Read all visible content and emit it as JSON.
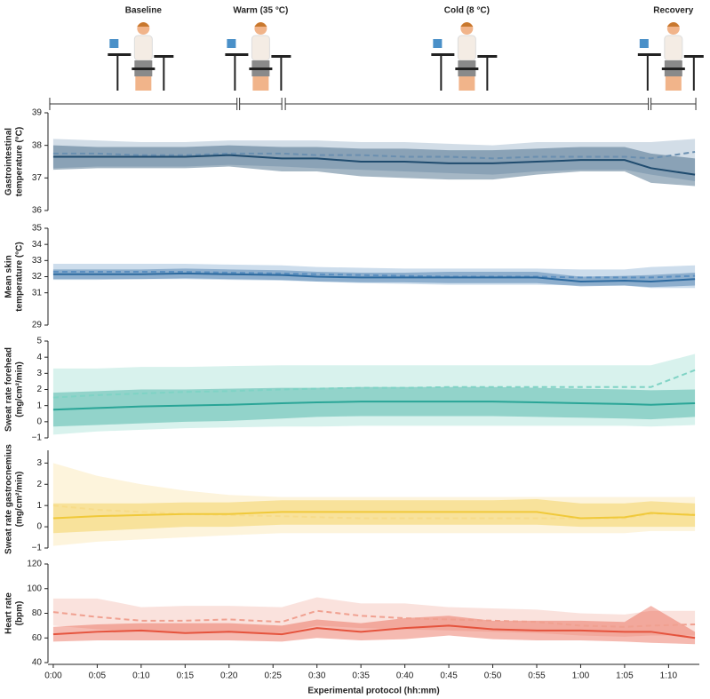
{
  "protocol": {
    "phases": [
      {
        "label": "Baseline",
        "start": -0.4,
        "end": 20.9
      },
      {
        "label": "Warm (35 °C)",
        "start": 21.2,
        "end": 26.0
      },
      {
        "label": "Cold (8 °C)",
        "start": 26.4,
        "end": 67.7
      },
      {
        "label": "Recovery",
        "start": 68.0,
        "end": 73.1
      }
    ]
  },
  "chart_data": [
    {
      "type": "line",
      "ylabel": [
        "Gastrointestinal",
        "temperature (°C)"
      ],
      "x": [
        0,
        5,
        10,
        15,
        20,
        26,
        30,
        35,
        40,
        45,
        50,
        55,
        60,
        65,
        68,
        73
      ],
      "xlim": [
        -0.6,
        73.5
      ],
      "ylim": [
        36,
        39
      ],
      "yticks": [
        36,
        37,
        38,
        39
      ],
      "series": [
        {
          "color": "#6a8fb0",
          "style": "dashed",
          "values": [
            37.75,
            37.75,
            37.7,
            37.7,
            37.75,
            37.75,
            37.7,
            37.7,
            37.65,
            37.65,
            37.6,
            37.65,
            37.65,
            37.65,
            37.6,
            37.8
          ],
          "lower": [
            37.3,
            37.35,
            37.35,
            37.35,
            37.4,
            37.35,
            37.3,
            37.25,
            37.2,
            37.15,
            37.1,
            37.2,
            37.25,
            37.25,
            37.1,
            36.9
          ],
          "upper": [
            38.2,
            38.15,
            38.1,
            38.1,
            38.15,
            38.15,
            38.15,
            38.1,
            38.1,
            38.05,
            38.0,
            38.1,
            38.1,
            38.1,
            38.1,
            38.2
          ]
        },
        {
          "color": "#1f4b6e",
          "style": "solid",
          "values": [
            37.65,
            37.65,
            37.65,
            37.65,
            37.7,
            37.6,
            37.6,
            37.5,
            37.5,
            37.45,
            37.45,
            37.5,
            37.55,
            37.55,
            37.3,
            37.1
          ],
          "lower": [
            37.25,
            37.3,
            37.3,
            37.3,
            37.35,
            37.2,
            37.2,
            37.05,
            37.0,
            36.95,
            36.95,
            37.1,
            37.2,
            37.2,
            36.85,
            36.75
          ],
          "upper": [
            38.0,
            37.95,
            37.95,
            37.95,
            38.0,
            37.95,
            37.95,
            37.9,
            37.9,
            37.85,
            37.85,
            37.9,
            37.95,
            37.95,
            37.75,
            37.6
          ]
        }
      ]
    },
    {
      "type": "line",
      "ylabel": [
        "Mean skin",
        "temperature (°C)"
      ],
      "x": [
        0,
        5,
        10,
        15,
        20,
        26,
        30,
        35,
        40,
        45,
        50,
        55,
        60,
        65,
        68,
        73
      ],
      "xlim": [
        -0.6,
        73.5
      ],
      "ylim": [
        29,
        35
      ],
      "yticks": [
        29,
        31,
        32,
        33,
        34,
        35
      ],
      "series": [
        {
          "color": "#5b8fc0",
          "style": "dashed",
          "values": [
            32.3,
            32.3,
            32.3,
            32.3,
            32.25,
            32.2,
            32.15,
            32.1,
            32.05,
            32.0,
            32.0,
            32.0,
            31.95,
            31.95,
            31.95,
            32.05
          ],
          "lower": [
            31.8,
            31.8,
            31.85,
            31.85,
            31.8,
            31.75,
            31.7,
            31.6,
            31.55,
            31.5,
            31.5,
            31.5,
            31.45,
            31.45,
            31.3,
            31.3
          ],
          "upper": [
            32.8,
            32.8,
            32.8,
            32.8,
            32.75,
            32.7,
            32.6,
            32.55,
            32.5,
            32.5,
            32.5,
            32.5,
            32.45,
            32.45,
            32.6,
            32.7
          ]
        },
        {
          "color": "#2d6a9f",
          "style": "solid",
          "values": [
            32.15,
            32.15,
            32.15,
            32.2,
            32.15,
            32.1,
            32.0,
            31.95,
            31.95,
            31.95,
            31.95,
            31.95,
            31.7,
            31.75,
            31.7,
            31.85
          ],
          "lower": [
            31.85,
            31.85,
            31.85,
            31.9,
            31.85,
            31.8,
            31.7,
            31.65,
            31.65,
            31.6,
            31.6,
            31.6,
            31.4,
            31.45,
            31.35,
            31.45
          ],
          "upper": [
            32.45,
            32.45,
            32.45,
            32.5,
            32.45,
            32.4,
            32.3,
            32.25,
            32.25,
            32.3,
            32.3,
            32.3,
            32.0,
            32.05,
            32.1,
            32.25
          ]
        }
      ]
    },
    {
      "type": "line",
      "ylabel": [
        "Sweat rate forehead",
        "(mg/cm²/min)"
      ],
      "x": [
        0,
        5,
        10,
        15,
        20,
        26,
        30,
        35,
        40,
        45,
        50,
        55,
        60,
        65,
        68,
        73
      ],
      "xlim": [
        -0.6,
        73.5
      ],
      "ylim": [
        -1,
        5
      ],
      "yticks": [
        {
          "value": -1,
          "label": "−1"
        },
        0,
        1,
        2,
        3,
        4,
        5
      ],
      "series": [
        {
          "color": "#7fd3c5",
          "style": "dashed",
          "values": [
            1.5,
            1.65,
            1.75,
            1.85,
            1.9,
            2.0,
            2.05,
            2.1,
            2.1,
            2.15,
            2.15,
            2.15,
            2.15,
            2.15,
            2.15,
            3.2
          ],
          "lower": [
            -0.8,
            -0.6,
            -0.5,
            -0.4,
            -0.35,
            -0.3,
            -0.3,
            -0.25,
            -0.25,
            -0.25,
            -0.25,
            -0.25,
            -0.25,
            -0.25,
            -0.3,
            -0.2
          ],
          "upper": [
            3.3,
            3.3,
            3.4,
            3.4,
            3.45,
            3.5,
            3.5,
            3.5,
            3.5,
            3.5,
            3.5,
            3.5,
            3.5,
            3.5,
            3.5,
            4.2
          ]
        },
        {
          "color": "#2aa597",
          "style": "solid",
          "values": [
            0.75,
            0.85,
            0.95,
            1.0,
            1.05,
            1.15,
            1.2,
            1.25,
            1.25,
            1.25,
            1.25,
            1.2,
            1.15,
            1.1,
            1.05,
            1.15
          ],
          "lower": [
            -0.3,
            -0.2,
            -0.1,
            0,
            0.05,
            0.2,
            0.3,
            0.35,
            0.35,
            0.35,
            0.35,
            0.3,
            0.25,
            0.2,
            0.15,
            0.3
          ],
          "upper": [
            1.8,
            1.9,
            2.0,
            2.0,
            2.05,
            2.1,
            2.1,
            2.15,
            2.15,
            2.15,
            2.15,
            2.1,
            2.05,
            2.0,
            1.95,
            2.0
          ]
        }
      ]
    },
    {
      "type": "line",
      "ylabel": [
        "Sweat rate gastrocnemius",
        "(mg/cm²/min)"
      ],
      "x": [
        0,
        5,
        10,
        15,
        20,
        26,
        30,
        35,
        40,
        45,
        50,
        55,
        60,
        65,
        68,
        73
      ],
      "xlim": [
        -0.6,
        73.5
      ],
      "ylim": [
        -1,
        3.6
      ],
      "yticks": [
        {
          "value": -1,
          "label": "−1"
        },
        0,
        1,
        2,
        3
      ],
      "series": [
        {
          "color": "#f7dc8a",
          "style": "dashed",
          "values": [
            1.0,
            0.8,
            0.7,
            0.6,
            0.55,
            0.5,
            0.45,
            0.4,
            0.4,
            0.4,
            0.4,
            0.4,
            0.4,
            0.4,
            0.6,
            0.6
          ],
          "lower": [
            -0.9,
            -0.7,
            -0.6,
            -0.5,
            -0.4,
            -0.3,
            -0.3,
            -0.3,
            -0.3,
            -0.3,
            -0.3,
            -0.3,
            -0.3,
            -0.3,
            -0.2,
            -0.2
          ],
          "upper": [
            3.0,
            2.4,
            2.0,
            1.7,
            1.5,
            1.4,
            1.4,
            1.4,
            1.4,
            1.4,
            1.4,
            1.4,
            1.4,
            1.4,
            1.4,
            1.4
          ]
        },
        {
          "color": "#f0c93a",
          "style": "solid",
          "values": [
            0.4,
            0.5,
            0.55,
            0.6,
            0.6,
            0.7,
            0.7,
            0.7,
            0.7,
            0.7,
            0.7,
            0.7,
            0.4,
            0.45,
            0.65,
            0.55
          ],
          "lower": [
            -0.3,
            -0.2,
            -0.1,
            0,
            0,
            0.1,
            0.1,
            0.1,
            0.1,
            0.1,
            0.1,
            0.1,
            0,
            0,
            0,
            0
          ],
          "upper": [
            1.1,
            1.1,
            1.1,
            1.15,
            1.15,
            1.25,
            1.25,
            1.25,
            1.25,
            1.25,
            1.25,
            1.3,
            1.1,
            1.1,
            1.2,
            1.1
          ]
        }
      ]
    },
    {
      "type": "line",
      "ylabel": [
        "Heart rate",
        "(bpm)"
      ],
      "x": [
        0,
        5,
        10,
        15,
        20,
        26,
        30,
        35,
        40,
        45,
        50,
        55,
        60,
        65,
        68,
        73
      ],
      "xlim": [
        -0.6,
        73.5
      ],
      "ylim": [
        40,
        120
      ],
      "yticks": [
        40,
        60,
        80,
        100,
        120
      ],
      "xlabel": "Experimental protocol (hh:mm)",
      "xticks": [
        {
          "value": 0,
          "label": "0:00"
        },
        {
          "value": 5,
          "label": "0:05"
        },
        {
          "value": 10,
          "label": "0:10"
        },
        {
          "value": 15,
          "label": "0:15"
        },
        {
          "value": 20,
          "label": "0:20"
        },
        {
          "value": 25,
          "label": "0:25"
        },
        {
          "value": 30,
          "label": "0:30"
        },
        {
          "value": 35,
          "label": "0:35"
        },
        {
          "value": 40,
          "label": "0:40"
        },
        {
          "value": 45,
          "label": "0:45"
        },
        {
          "value": 50,
          "label": "0:50"
        },
        {
          "value": 55,
          "label": "0:55"
        },
        {
          "value": 60,
          "label": "1:00"
        },
        {
          "value": 65,
          "label": "1:05"
        },
        {
          "value": 70,
          "label": "1:10"
        }
      ],
      "series": [
        {
          "color": "#f0a090",
          "style": "dashed",
          "values": [
            81,
            77,
            74,
            74,
            75,
            73,
            82,
            78,
            76,
            75,
            74,
            73,
            70,
            69,
            70,
            71
          ],
          "lower": [
            70,
            67,
            65,
            65,
            65,
            64,
            70,
            68,
            67,
            66,
            65,
            64,
            62,
            61,
            62,
            62
          ],
          "upper": [
            92,
            92,
            85,
            86,
            86,
            85,
            93,
            88,
            88,
            85,
            84,
            83,
            80,
            79,
            82,
            82
          ]
        },
        {
          "color": "#e5533d",
          "style": "solid",
          "values": [
            63,
            65,
            66,
            64,
            65,
            63,
            68,
            65,
            68,
            70,
            67,
            66,
            66,
            65,
            65,
            60
          ],
          "lower": [
            57,
            58,
            58,
            58,
            58,
            57,
            60,
            58,
            59,
            62,
            59,
            58,
            58,
            57,
            56,
            55
          ],
          "upper": [
            69,
            71,
            72,
            72,
            72,
            70,
            75,
            72,
            76,
            78,
            74,
            74,
            74,
            73,
            86,
            65
          ]
        }
      ]
    }
  ]
}
